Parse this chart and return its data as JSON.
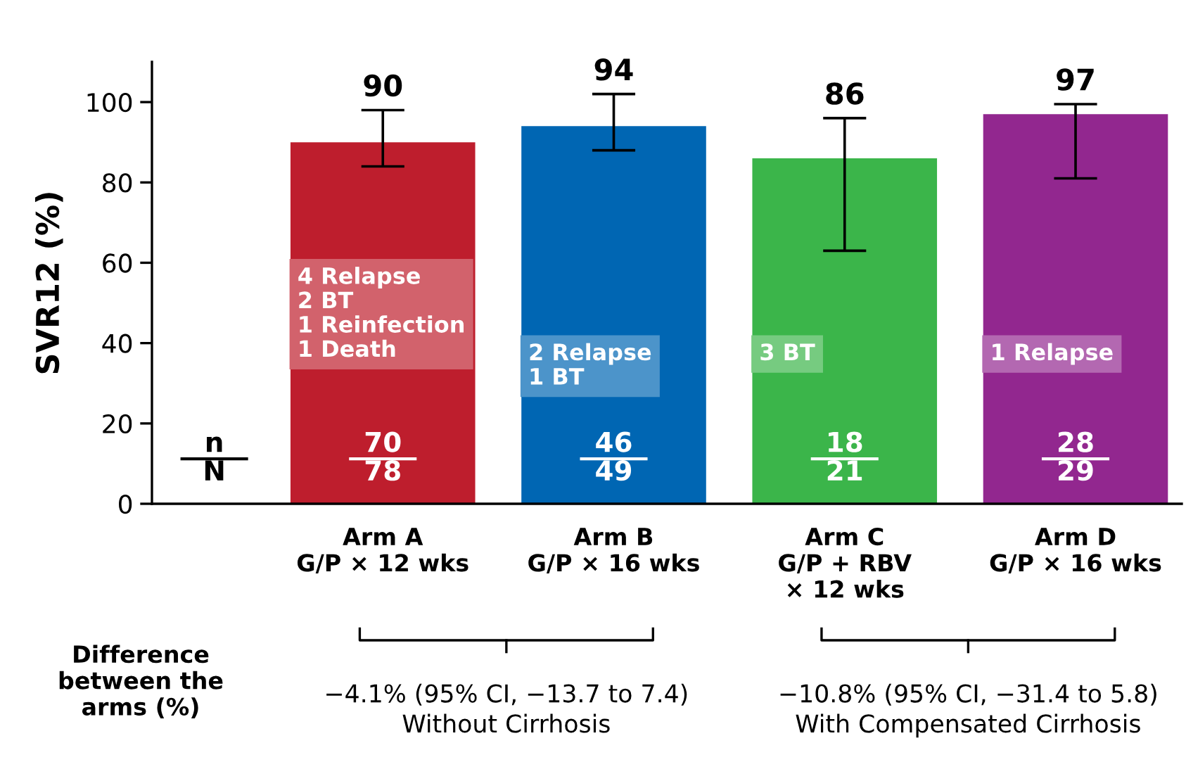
{
  "chart_data": {
    "type": "bar",
    "ylabel": "SVR12 (%)",
    "categories": [
      "Arm A\nG/P × 12 wks",
      "Arm B\nG/P × 16 wks",
      "Arm C\nG/P + RBV\n× 12 wks",
      "Arm D\nG/P × 16 wks"
    ],
    "values": [
      90,
      94,
      86,
      97
    ],
    "colors": [
      "#be1e2d",
      "#0066b3",
      "#3bb54a",
      "#92278f"
    ],
    "errors": [
      [
        84,
        98
      ],
      [
        88,
        102
      ],
      [
        63,
        96
      ],
      [
        81,
        99.5
      ]
    ],
    "data_labels": true,
    "ylim": [
      0,
      110
    ],
    "yticks": [
      0,
      20,
      40,
      60,
      80,
      100
    ],
    "grid": false,
    "annotations": [
      "4 Relapse\n2 BT\n1 Reinfection\n1 Death",
      "2 Relapse\n1 BT",
      "3 BT",
      "1 Relapse",
      "70",
      "78",
      "46",
      "49",
      "18",
      "21",
      "28",
      "29",
      "n",
      "N",
      "Difference\nbetween the\narms (%)",
      "−4.1% (95% CI, −13.7 to 7.4)\nWithout Cirrhosis",
      "−10.8% (95% CI, −31.4 to 5.8)\nWith Compensated Cirrhosis"
    ]
  }
}
